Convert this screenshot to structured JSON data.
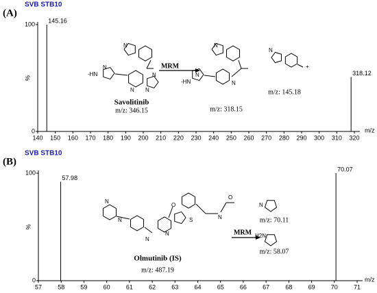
{
  "chart_data": [
    {
      "type": "bar",
      "panel": "(A)",
      "title": "SVB STB10",
      "ylabel": "%",
      "xlabel": "m/z",
      "x": [
        145.16,
        318.12
      ],
      "values": [
        100,
        51
      ],
      "color": "#000000",
      "xlim": [
        140,
        320
      ],
      "xticks": [
        140,
        150,
        160,
        170,
        180,
        190,
        200,
        210,
        220,
        230,
        240,
        250,
        260,
        270,
        280,
        290,
        300,
        310,
        320
      ],
      "ylim": [
        0,
        100
      ],
      "yticks": [
        0,
        100
      ],
      "compound": "Savolitinib",
      "annotations": [
        "MRM",
        "m/z: 346.15",
        "m/z: 318.15",
        "m/z: 145.18"
      ],
      "atoms": [
        "-HN",
        "N",
        "N",
        "N",
        "N",
        "N",
        "-HN",
        "N",
        "N",
        "N",
        "N",
        "+",
        "+"
      ]
    },
    {
      "type": "bar",
      "panel": "(B)",
      "title": "SVB STB10",
      "ylabel": "%",
      "xlabel": "m/z",
      "x": [
        57.98,
        70.07
      ],
      "values": [
        92,
        100
      ],
      "color": "#000000",
      "xlim": [
        57,
        71
      ],
      "xticks": [
        57,
        58,
        59,
        60,
        61,
        62,
        63,
        64,
        65,
        66,
        67,
        68,
        69,
        70,
        71
      ],
      "ylim": [
        0,
        100
      ],
      "yticks": [
        0,
        100
      ],
      "compound": "Olmutinib (IS)",
      "annotations": [
        "MRM",
        "m/z: 487.19",
        "m/z: 70.11",
        "m/z: 58.07"
      ],
      "atoms": [
        "N",
        "N",
        "N",
        "N",
        "O",
        "S",
        "N",
        "O",
        "N",
        "H2N"
      ]
    }
  ]
}
